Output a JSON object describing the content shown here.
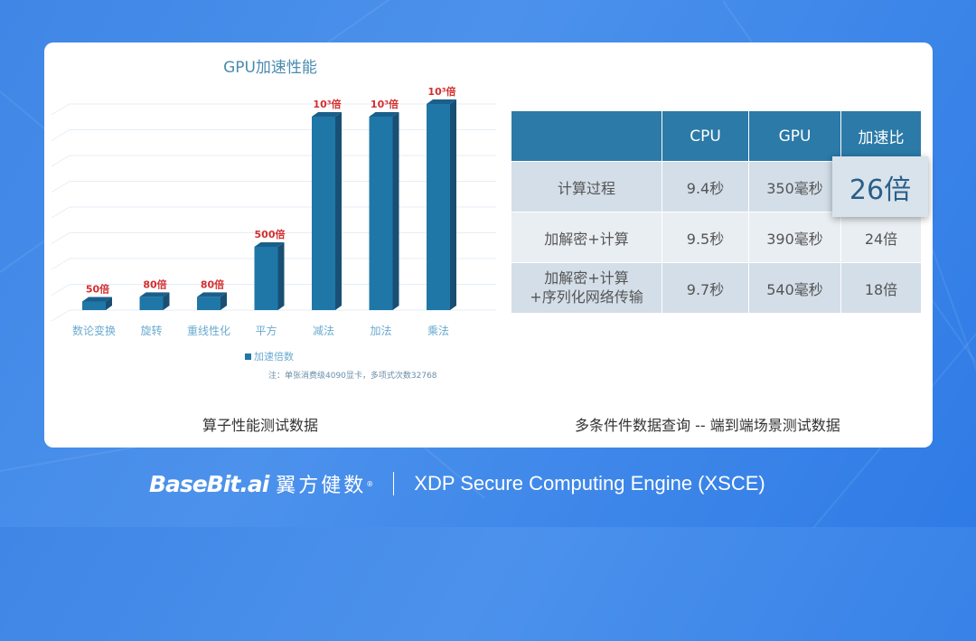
{
  "chart_data": {
    "type": "bar",
    "title": "GPU加速性能",
    "categories": [
      "数论变换",
      "旋转",
      "重线性化",
      "平方",
      "减法",
      "加法",
      "乘法"
    ],
    "values": [
      50,
      80,
      80,
      500,
      1000,
      1000,
      1000
    ],
    "data_labels": [
      "50倍",
      "80倍",
      "80倍",
      "500倍",
      "10³倍",
      "10³倍",
      "10³倍"
    ],
    "legend": "加速倍数",
    "legend_position": "bottom",
    "grid": true,
    "bar_color": "#1f77a8",
    "label_color": "#d32f2f",
    "note": "注：单张消费级4090显卡，多项式次数32768"
  },
  "left_caption": "算子性能测试数据",
  "right_caption": "多条件件数据查询 -- 端到端场景测试数据",
  "table": {
    "headers": [
      "",
      "CPU",
      "GPU",
      "加速比"
    ],
    "rows": [
      [
        "计算过程",
        "9.4秒",
        "350毫秒",
        "26倍"
      ],
      [
        "加解密+计算",
        "9.5秒",
        "390毫秒",
        "24倍"
      ],
      [
        "加解密+计算\n+序列化网络传输",
        "9.7秒",
        "540毫秒",
        "18倍"
      ]
    ]
  },
  "footer": {
    "logo": "BaseBit.ai",
    "cn": "翼方健数",
    "reg": "®",
    "engine": "XDP Secure Computing Engine (XSCE)"
  }
}
